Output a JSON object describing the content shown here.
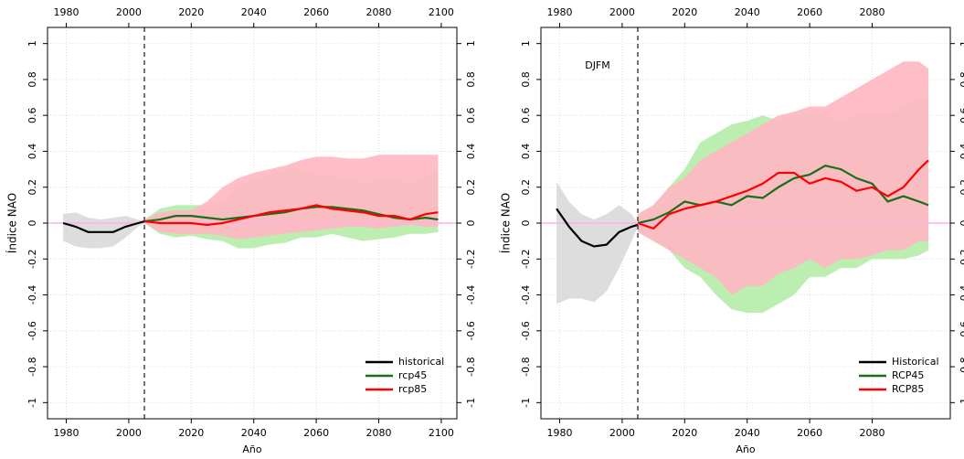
{
  "chart_data": [
    {
      "type": "line",
      "x_label": "Año",
      "y_label": "Índice NAO",
      "xlim": [
        1974,
        2105
      ],
      "ylim": [
        -1.09,
        1.09
      ],
      "xticks": [
        1980,
        2000,
        2020,
        2040,
        2060,
        2080,
        2100
      ],
      "yticks": [
        -1,
        -0.8,
        -0.6,
        -0.4,
        -0.2,
        0,
        0.2,
        0.4,
        0.6,
        0.8,
        1
      ],
      "grid": true,
      "vline": 2005,
      "hline": 0,
      "legend": "bottom-right",
      "series": [
        {
          "name": "historical",
          "color": "#000000",
          "band_color": "#d9d9d9",
          "x": [
            1979,
            1983,
            1987,
            1991,
            1995,
            1999,
            2003,
            2005
          ],
          "values": [
            0,
            -0.02,
            -0.05,
            -0.05,
            -0.05,
            -0.02,
            0.0,
            0.01
          ],
          "lower": [
            -0.1,
            -0.13,
            -0.14,
            -0.14,
            -0.13,
            -0.08,
            -0.02,
            0.0
          ],
          "upper": [
            0.05,
            0.06,
            0.03,
            0.02,
            0.03,
            0.04,
            0.02,
            0.01
          ]
        },
        {
          "name": "rcp45",
          "color": "#1a6e1a",
          "band_color": "#b5ecaa",
          "x": [
            2005,
            2010,
            2015,
            2020,
            2025,
            2030,
            2035,
            2040,
            2045,
            2050,
            2055,
            2060,
            2065,
            2070,
            2075,
            2080,
            2085,
            2090,
            2095,
            2099
          ],
          "values": [
            0.01,
            0.02,
            0.04,
            0.04,
            0.03,
            0.02,
            0.03,
            0.04,
            0.05,
            0.06,
            0.08,
            0.09,
            0.09,
            0.08,
            0.07,
            0.05,
            0.03,
            0.02,
            0.03,
            0.02
          ],
          "lower": [
            0,
            -0.06,
            -0.08,
            -0.07,
            -0.09,
            -0.1,
            -0.14,
            -0.14,
            -0.12,
            -0.11,
            -0.08,
            -0.08,
            -0.06,
            -0.08,
            -0.1,
            -0.09,
            -0.08,
            -0.06,
            -0.06,
            -0.05
          ],
          "upper": [
            0.02,
            0.08,
            0.1,
            0.1,
            0.1,
            0.12,
            0.2,
            0.24,
            0.27,
            0.3,
            0.3,
            0.27,
            0.26,
            0.25,
            0.22,
            0.24,
            0.24,
            0.22,
            0.26,
            0.3
          ]
        },
        {
          "name": "rcp85",
          "color": "#ff0000",
          "band_color": "#ffb6c1",
          "x": [
            2005,
            2010,
            2015,
            2020,
            2025,
            2030,
            2035,
            2040,
            2045,
            2050,
            2055,
            2060,
            2065,
            2070,
            2075,
            2080,
            2085,
            2090,
            2095,
            2099
          ],
          "values": [
            0.01,
            0,
            0.0,
            0.0,
            -0.01,
            0.0,
            0.02,
            0.04,
            0.06,
            0.07,
            0.08,
            0.1,
            0.08,
            0.07,
            0.06,
            0.04,
            0.04,
            0.02,
            0.05,
            0.06
          ],
          "lower": [
            0,
            -0.05,
            -0.06,
            -0.06,
            -0.06,
            -0.07,
            -0.09,
            -0.08,
            -0.07,
            -0.06,
            -0.05,
            -0.04,
            -0.03,
            -0.02,
            -0.02,
            -0.03,
            -0.02,
            -0.01,
            -0.02,
            -0.02
          ],
          "upper": [
            0.02,
            0.06,
            0.07,
            0.07,
            0.12,
            0.2,
            0.25,
            0.28,
            0.3,
            0.32,
            0.35,
            0.37,
            0.37,
            0.36,
            0.36,
            0.38,
            0.38,
            0.38,
            0.38,
            0.38
          ]
        }
      ]
    },
    {
      "type": "line",
      "x_label": "Año",
      "y_label": "Índice NAO",
      "annotation": "DJFM",
      "xlim": [
        1974,
        2105
      ],
      "ylim": [
        -1.09,
        1.09
      ],
      "xticks": [
        1980,
        2000,
        2020,
        2040,
        2060,
        2080
      ],
      "yticks": [
        -1,
        -0.8,
        -0.6,
        -0.4,
        -0.2,
        0,
        0.2,
        0.4,
        0.6,
        0.8,
        1
      ],
      "grid": true,
      "vline": 2005,
      "hline": 0,
      "legend": "bottom-right",
      "series": [
        {
          "name": "Historical",
          "color": "#000000",
          "band_color": "#d9d9d9",
          "x": [
            1979,
            1983,
            1987,
            1991,
            1995,
            1999,
            2003,
            2005
          ],
          "values": [
            0.08,
            -0.02,
            -0.1,
            -0.13,
            -0.12,
            -0.05,
            -0.02,
            -0.01
          ],
          "lower": [
            -0.45,
            -0.42,
            -0.42,
            -0.44,
            -0.38,
            -0.25,
            -0.1,
            -0.02
          ],
          "upper": [
            0.23,
            0.12,
            0.05,
            0.02,
            0.05,
            0.1,
            0.05,
            0.0
          ]
        },
        {
          "name": "RCP45",
          "color": "#1a6e1a",
          "band_color": "#b5ecaa",
          "x": [
            2005,
            2010,
            2015,
            2020,
            2025,
            2030,
            2035,
            2040,
            2045,
            2050,
            2055,
            2060,
            2065,
            2070,
            2075,
            2080,
            2085,
            2090,
            2095,
            2098
          ],
          "values": [
            0,
            0.02,
            0.06,
            0.12,
            0.1,
            0.12,
            0.1,
            0.15,
            0.14,
            0.2,
            0.25,
            0.27,
            0.32,
            0.3,
            0.25,
            0.22,
            0.12,
            0.15,
            0.12,
            0.1
          ],
          "lower": [
            -0.05,
            -0.1,
            -0.15,
            -0.25,
            -0.3,
            -0.4,
            -0.48,
            -0.5,
            -0.5,
            -0.45,
            -0.4,
            -0.3,
            -0.3,
            -0.25,
            -0.25,
            -0.2,
            -0.2,
            -0.2,
            -0.18,
            -0.15
          ],
          "upper": [
            0.05,
            0.1,
            0.2,
            0.3,
            0.45,
            0.5,
            0.55,
            0.57,
            0.6,
            0.57,
            0.6,
            0.62,
            0.6,
            0.55,
            0.6,
            0.6,
            0.6,
            0.65,
            0.7,
            0.7
          ]
        },
        {
          "name": "RCP85",
          "color": "#ff0000",
          "band_color": "#ffb6c1",
          "x": [
            2005,
            2010,
            2015,
            2020,
            2025,
            2030,
            2035,
            2040,
            2045,
            2050,
            2055,
            2060,
            2065,
            2070,
            2075,
            2080,
            2085,
            2090,
            2095,
            2098
          ],
          "values": [
            0,
            -0.03,
            0.05,
            0.08,
            0.1,
            0.12,
            0.15,
            0.18,
            0.22,
            0.28,
            0.28,
            0.22,
            0.25,
            0.23,
            0.18,
            0.2,
            0.15,
            0.2,
            0.3,
            0.35
          ],
          "lower": [
            -0.05,
            -0.1,
            -0.15,
            -0.2,
            -0.25,
            -0.3,
            -0.4,
            -0.35,
            -0.35,
            -0.28,
            -0.25,
            -0.2,
            -0.25,
            -0.2,
            -0.2,
            -0.18,
            -0.15,
            -0.15,
            -0.1,
            -0.1
          ],
          "upper": [
            0.05,
            0.1,
            0.2,
            0.25,
            0.35,
            0.4,
            0.45,
            0.5,
            0.55,
            0.6,
            0.62,
            0.65,
            0.65,
            0.7,
            0.75,
            0.8,
            0.85,
            0.9,
            0.9,
            0.86
          ]
        }
      ]
    }
  ]
}
